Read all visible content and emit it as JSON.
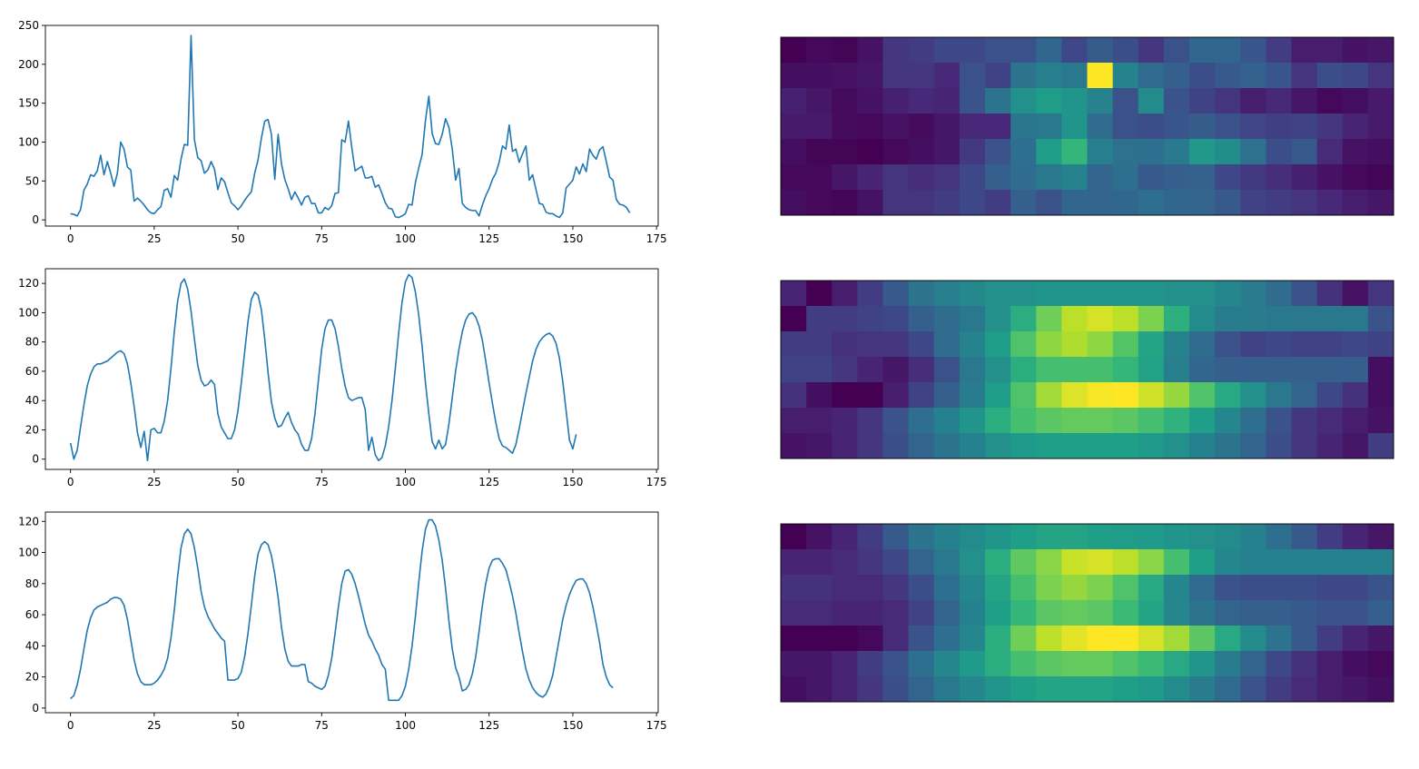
{
  "colors": {
    "line": "#1f77b4",
    "axes": "#000000",
    "colormap": [
      "#440154",
      "#482878",
      "#3e4989",
      "#31688e",
      "#26828e",
      "#1f9e89",
      "#35b779",
      "#6ece58",
      "#b5de2b",
      "#fde725"
    ]
  },
  "chart_data": [
    {
      "type": "line",
      "xlim": [
        -7.5,
        175.5
      ],
      "ylim": [
        -8,
        250
      ],
      "xticks": [
        0,
        25,
        50,
        75,
        100,
        125,
        150,
        175
      ],
      "yticks": [
        0,
        50,
        100,
        150,
        200,
        250
      ],
      "series": [
        {
          "y": [
            8,
            7,
            5,
            13,
            38,
            46,
            58,
            56,
            63,
            83,
            58,
            75,
            60,
            43,
            60,
            100,
            91,
            68,
            64,
            24,
            28,
            24,
            19,
            13,
            9,
            8,
            13,
            17,
            38,
            40,
            29,
            57,
            51,
            78,
            97,
            96,
            237,
            103,
            80,
            76,
            60,
            64,
            75,
            65,
            39,
            54,
            49,
            35,
            22,
            18,
            13,
            18,
            25,
            31,
            36,
            60,
            77,
            105,
            127,
            129,
            110,
            52,
            110,
            72,
            52,
            40,
            26,
            36,
            28,
            19,
            29,
            31,
            21,
            21,
            9,
            9,
            16,
            13,
            18,
            34,
            35,
            103,
            100,
            127,
            93,
            63,
            66,
            69,
            54,
            54,
            56,
            42,
            45,
            34,
            22,
            15,
            14,
            4,
            3,
            5,
            8,
            20,
            19,
            48,
            67,
            84,
            128,
            159,
            111,
            98,
            97,
            110,
            130,
            119,
            91,
            51,
            66,
            21,
            16,
            13,
            12,
            12,
            5,
            19,
            31,
            40,
            52,
            60,
            74,
            95,
            91,
            122,
            88,
            91,
            74,
            85,
            95,
            51,
            58,
            39,
            21,
            20,
            10,
            8,
            8,
            5,
            3,
            9,
            41,
            46,
            51,
            68,
            59,
            72,
            62,
            91,
            83,
            78,
            90,
            94,
            75,
            55,
            51,
            26,
            20,
            19,
            16,
            9
          ]
        }
      ]
    },
    {
      "type": "line",
      "xlim": [
        -7.5,
        175.5
      ],
      "ylim": [
        -7,
        130
      ],
      "xticks": [
        0,
        25,
        50,
        75,
        100,
        125,
        150,
        175
      ],
      "yticks": [
        0,
        20,
        40,
        60,
        80,
        100,
        120
      ],
      "series": [
        {
          "y": [
            11,
            0,
            6,
            22,
            37,
            50,
            58,
            63,
            65,
            65,
            66,
            67,
            69,
            71,
            73,
            74,
            72,
            65,
            52,
            36,
            18,
            8,
            19,
            -1,
            20,
            21,
            18,
            18,
            26,
            40,
            62,
            87,
            108,
            120,
            123,
            116,
            101,
            82,
            64,
            54,
            50,
            51,
            54,
            51,
            31,
            22,
            18,
            14,
            14,
            20,
            33,
            52,
            73,
            94,
            109,
            114,
            112,
            102,
            82,
            59,
            39,
            28,
            22,
            23,
            28,
            32,
            25,
            20,
            17,
            10,
            6,
            6,
            14,
            31,
            53,
            75,
            89,
            95,
            95,
            89,
            77,
            62,
            50,
            42,
            40,
            41,
            42,
            42,
            34,
            6,
            15,
            3,
            -1,
            1,
            9,
            22,
            40,
            62,
            86,
            107,
            121,
            126,
            124,
            114,
            98,
            77,
            52,
            31,
            12,
            7,
            13,
            7,
            10,
            24,
            42,
            60,
            75,
            87,
            95,
            99,
            100,
            97,
            91,
            81,
            67,
            52,
            38,
            25,
            14,
            9,
            8,
            6,
            4,
            10,
            21,
            33,
            45,
            56,
            67,
            75,
            80,
            83,
            85,
            86,
            84,
            79,
            69,
            53,
            33,
            13,
            7,
            17
          ]
        }
      ]
    },
    {
      "type": "line",
      "xlim": [
        -7.5,
        175.5
      ],
      "ylim": [
        -3,
        126
      ],
      "xticks": [
        0,
        25,
        50,
        75,
        100,
        125,
        150,
        175
      ],
      "yticks": [
        0,
        20,
        40,
        60,
        80,
        100,
        120
      ],
      "series": [
        {
          "y": [
            6,
            8,
            15,
            25,
            38,
            50,
            58,
            63,
            65,
            66,
            67,
            68,
            70,
            71,
            71,
            70,
            66,
            57,
            44,
            31,
            22,
            17,
            15,
            15,
            15,
            16,
            18,
            21,
            25,
            32,
            45,
            63,
            85,
            103,
            112,
            115,
            112,
            103,
            90,
            75,
            65,
            59,
            55,
            51,
            48,
            45,
            43,
            18,
            18,
            18,
            19,
            23,
            33,
            48,
            66,
            85,
            99,
            105,
            107,
            105,
            98,
            86,
            71,
            52,
            38,
            30,
            27,
            27,
            27,
            28,
            28,
            17,
            16,
            14,
            13,
            12,
            14,
            21,
            32,
            48,
            65,
            80,
            88,
            89,
            86,
            80,
            72,
            63,
            54,
            47,
            43,
            38,
            34,
            28,
            25,
            5,
            5,
            5,
            5,
            8,
            14,
            25,
            40,
            59,
            81,
            101,
            115,
            121,
            121,
            117,
            108,
            95,
            77,
            56,
            38,
            26,
            20,
            11,
            12,
            15,
            22,
            33,
            49,
            66,
            80,
            90,
            95,
            96,
            96,
            93,
            89,
            81,
            72,
            61,
            48,
            36,
            25,
            18,
            13,
            10,
            8,
            7,
            9,
            14,
            21,
            33,
            45,
            57,
            66,
            73,
            78,
            82,
            83,
            83,
            80,
            74,
            65,
            54,
            42,
            28,
            20,
            15,
            13
          ]
        }
      ]
    },
    {
      "type": "heatmap",
      "rows": 7,
      "cols": 24,
      "values": [
        [
          0,
          0.02,
          0.01,
          0.05,
          0.16,
          0.18,
          0.22,
          0.22,
          0.25,
          0.25,
          0.33,
          0.22,
          0.29,
          0.24,
          0.16,
          0.25,
          0.33,
          0.33,
          0.27,
          0.18,
          0.08,
          0.08,
          0.05,
          0.06
        ],
        [
          0.04,
          0.04,
          0.05,
          0.06,
          0.16,
          0.16,
          0.11,
          0.25,
          0.2,
          0.38,
          0.43,
          0.4,
          1.0,
          0.45,
          0.34,
          0.3,
          0.24,
          0.28,
          0.31,
          0.27,
          0.15,
          0.24,
          0.22,
          0.15
        ],
        [
          0.09,
          0.06,
          0.03,
          0.05,
          0.09,
          0.11,
          0.1,
          0.26,
          0.38,
          0.5,
          0.55,
          0.52,
          0.45,
          0.25,
          0.48,
          0.26,
          0.2,
          0.15,
          0.08,
          0.11,
          0.06,
          0.02,
          0.04,
          0.07
        ],
        [
          0.07,
          0.07,
          0.03,
          0.02,
          0.05,
          0.03,
          0.06,
          0.11,
          0.11,
          0.39,
          0.4,
          0.52,
          0.35,
          0.25,
          0.24,
          0.27,
          0.29,
          0.25,
          0.21,
          0.19,
          0.2,
          0.16,
          0.1,
          0.07
        ],
        [
          0.04,
          0.01,
          0.01,
          0.0,
          0.02,
          0.04,
          0.06,
          0.17,
          0.26,
          0.36,
          0.55,
          0.66,
          0.43,
          0.37,
          0.36,
          0.41,
          0.53,
          0.49,
          0.37,
          0.24,
          0.28,
          0.12,
          0.05,
          0.04
        ],
        [
          0.02,
          0.02,
          0.06,
          0.1,
          0.15,
          0.13,
          0.15,
          0.22,
          0.3,
          0.35,
          0.4,
          0.45,
          0.32,
          0.36,
          0.28,
          0.3,
          0.31,
          0.22,
          0.17,
          0.13,
          0.09,
          0.05,
          0.02,
          0.01
        ],
        [
          0.04,
          0.02,
          0.01,
          0.05,
          0.15,
          0.15,
          0.18,
          0.22,
          0.18,
          0.3,
          0.25,
          0.33,
          0.32,
          0.33,
          0.36,
          0.33,
          0.32,
          0.28,
          0.2,
          0.18,
          0.15,
          0.11,
          0.08,
          0.06
        ]
      ]
    },
    {
      "type": "heatmap",
      "rows": 7,
      "cols": 24,
      "values": [
        [
          0.1,
          0.0,
          0.08,
          0.18,
          0.28,
          0.38,
          0.43,
          0.47,
          0.5,
          0.5,
          0.52,
          0.52,
          0.52,
          0.52,
          0.52,
          0.5,
          0.5,
          0.46,
          0.42,
          0.35,
          0.26,
          0.14,
          0.05,
          0.15
        ],
        [
          0.0,
          0.18,
          0.18,
          0.2,
          0.22,
          0.3,
          0.35,
          0.4,
          0.5,
          0.62,
          0.78,
          0.9,
          0.94,
          0.9,
          0.8,
          0.63,
          0.48,
          0.42,
          0.42,
          0.4,
          0.4,
          0.4,
          0.4,
          0.26
        ],
        [
          0.18,
          0.18,
          0.14,
          0.15,
          0.16,
          0.22,
          0.35,
          0.45,
          0.55,
          0.72,
          0.83,
          0.88,
          0.83,
          0.73,
          0.58,
          0.45,
          0.35,
          0.25,
          0.2,
          0.22,
          0.2,
          0.2,
          0.22,
          0.2
        ],
        [
          0.2,
          0.2,
          0.16,
          0.1,
          0.06,
          0.13,
          0.25,
          0.4,
          0.5,
          0.62,
          0.7,
          0.7,
          0.7,
          0.66,
          0.57,
          0.43,
          0.33,
          0.3,
          0.3,
          0.3,
          0.3,
          0.3,
          0.3,
          0.04
        ],
        [
          0.14,
          0.04,
          0.0,
          0.0,
          0.08,
          0.2,
          0.3,
          0.42,
          0.55,
          0.72,
          0.86,
          0.95,
          0.99,
          1.0,
          0.93,
          0.84,
          0.72,
          0.6,
          0.5,
          0.4,
          0.32,
          0.22,
          0.14,
          0.04
        ],
        [
          0.08,
          0.08,
          0.1,
          0.16,
          0.26,
          0.36,
          0.44,
          0.52,
          0.62,
          0.7,
          0.74,
          0.76,
          0.76,
          0.74,
          0.7,
          0.64,
          0.56,
          0.46,
          0.36,
          0.26,
          0.16,
          0.12,
          0.08,
          0.05
        ],
        [
          0.05,
          0.06,
          0.1,
          0.16,
          0.24,
          0.32,
          0.38,
          0.44,
          0.5,
          0.54,
          0.56,
          0.56,
          0.56,
          0.56,
          0.54,
          0.5,
          0.44,
          0.38,
          0.32,
          0.24,
          0.16,
          0.1,
          0.06,
          0.18
        ]
      ]
    },
    {
      "type": "heatmap",
      "rows": 7,
      "cols": 24,
      "values": [
        [
          0.0,
          0.05,
          0.1,
          0.18,
          0.28,
          0.38,
          0.44,
          0.48,
          0.52,
          0.56,
          0.58,
          0.58,
          0.56,
          0.55,
          0.54,
          0.52,
          0.5,
          0.48,
          0.44,
          0.36,
          0.28,
          0.18,
          0.1,
          0.06
        ],
        [
          0.1,
          0.1,
          0.12,
          0.16,
          0.22,
          0.32,
          0.4,
          0.5,
          0.62,
          0.75,
          0.82,
          0.92,
          0.94,
          0.9,
          0.82,
          0.7,
          0.56,
          0.46,
          0.44,
          0.44,
          0.44,
          0.44,
          0.44,
          0.44
        ],
        [
          0.14,
          0.14,
          0.12,
          0.12,
          0.16,
          0.24,
          0.36,
          0.46,
          0.58,
          0.7,
          0.8,
          0.84,
          0.8,
          0.72,
          0.6,
          0.46,
          0.34,
          0.26,
          0.24,
          0.24,
          0.24,
          0.22,
          0.22,
          0.26
        ],
        [
          0.12,
          0.12,
          0.1,
          0.1,
          0.12,
          0.2,
          0.32,
          0.44,
          0.56,
          0.66,
          0.74,
          0.76,
          0.74,
          0.68,
          0.58,
          0.46,
          0.38,
          0.32,
          0.3,
          0.3,
          0.28,
          0.26,
          0.26,
          0.3
        ],
        [
          0.0,
          0.0,
          0.0,
          0.02,
          0.12,
          0.26,
          0.36,
          0.46,
          0.62,
          0.78,
          0.9,
          0.96,
          1.0,
          1.0,
          0.94,
          0.86,
          0.74,
          0.6,
          0.48,
          0.38,
          0.28,
          0.18,
          0.1,
          0.06
        ],
        [
          0.06,
          0.06,
          0.1,
          0.18,
          0.26,
          0.36,
          0.46,
          0.54,
          0.62,
          0.7,
          0.74,
          0.76,
          0.76,
          0.72,
          0.68,
          0.6,
          0.52,
          0.42,
          0.32,
          0.22,
          0.14,
          0.08,
          0.04,
          0.02
        ],
        [
          0.04,
          0.06,
          0.1,
          0.16,
          0.24,
          0.32,
          0.4,
          0.46,
          0.52,
          0.56,
          0.58,
          0.58,
          0.58,
          0.56,
          0.54,
          0.48,
          0.42,
          0.34,
          0.26,
          0.18,
          0.12,
          0.08,
          0.06,
          0.04
        ]
      ]
    }
  ]
}
